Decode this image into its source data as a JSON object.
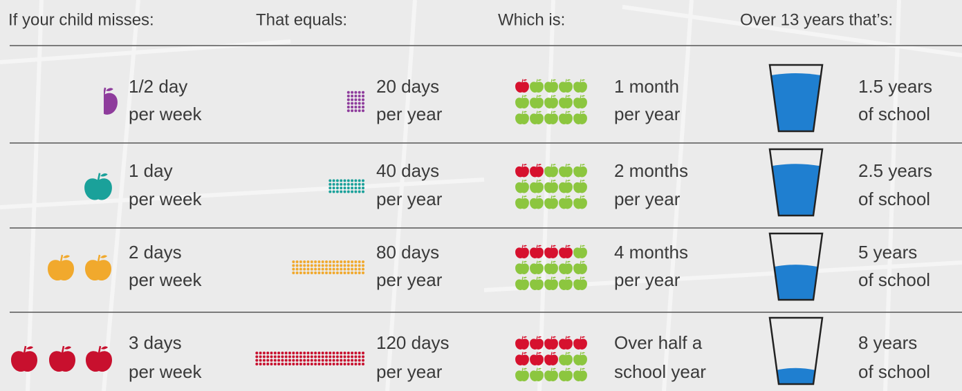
{
  "header": [
    "If your child misses:",
    "That equals:",
    "Which is:",
    "Over 13 years that’s:"
  ],
  "rows": [
    {
      "misses": [
        "1/2 day",
        "per week"
      ],
      "equals": [
        "20 days",
        "per year"
      ],
      "which": [
        "1 month",
        "per year"
      ],
      "over": [
        "1.5 years",
        "of school"
      ]
    },
    {
      "misses": [
        "1 day",
        "per week"
      ],
      "equals": [
        "40 days",
        "per year"
      ],
      "which": [
        "2 months",
        "per year"
      ],
      "over": [
        "2.5 years",
        "of school"
      ]
    },
    {
      "misses": [
        "2 days",
        "per week"
      ],
      "equals": [
        "80 days",
        "per year"
      ],
      "which": [
        "4 months",
        "per year"
      ],
      "over": [
        "5 years",
        "of school"
      ]
    },
    {
      "misses": [
        "3 days",
        "per week"
      ],
      "equals": [
        "120 days",
        "per year"
      ],
      "which": [
        "Over half a",
        "school year"
      ],
      "over": [
        "8 years",
        "of school"
      ]
    }
  ]
}
